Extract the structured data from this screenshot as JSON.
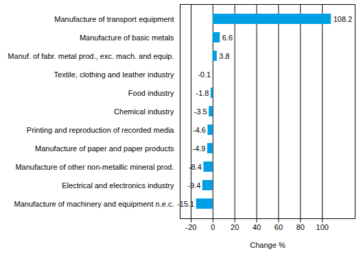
{
  "chart_data": {
    "type": "bar",
    "orientation": "horizontal",
    "x_label": "Change %",
    "categories": [
      "Manufacture of transport equipment",
      "Manufacture of basic metals",
      "Manuf. of fabr. metal prod., exc. mach. and equip.",
      "Textile, clothing and leather industry",
      "Food industry",
      "Chemical industry",
      "Printing and reproduction of recorded media",
      "Manufacture of paper and paper products",
      "Manufacture of other non-metallic mineral prod.",
      "Electrical and electronics industry",
      "Manufacture of machinery and equipment n.e.c."
    ],
    "values": [
      108.2,
      6.6,
      3.8,
      -0.1,
      -1.8,
      -3.5,
      -4.6,
      -4.9,
      -8.4,
      -9.4,
      -15.1
    ],
    "color": "#009fe3",
    "xlim": [
      -30,
      130
    ],
    "xticks": [
      -20,
      0,
      20,
      40,
      60,
      80,
      100
    ],
    "grid": true,
    "data_labels": true
  }
}
